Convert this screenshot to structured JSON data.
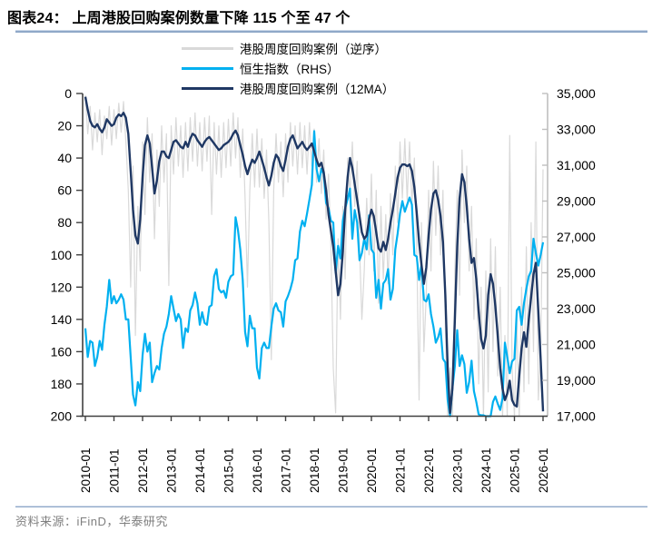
{
  "header": {
    "title": "图表24：  上周港股回购案例数量下降 115 个至 47 个"
  },
  "legend": [
    {
      "label": "港股周度回购案例（逆序）",
      "color": "#d9d9d9"
    },
    {
      "label": "恒生指数（RHS）",
      "color": "#00b0f0"
    },
    {
      "label": "港股周度回购案例（12MA）",
      "color": "#1f3864"
    }
  ],
  "footer": {
    "source": "资料来源：iFinD，华泰研究"
  },
  "colors": {
    "axis_dark": "#404040",
    "axis_light": "#bfbfbf",
    "divider_blue": "#8fa8c8",
    "gray_series": "#d9d9d9",
    "cyan_series": "#00b0f0",
    "navy_series": "#1f3864"
  },
  "chart_data": {
    "type": "line",
    "x_start": "2010-01",
    "x_freq": "monthly",
    "x_tick_labels": [
      "2010-01",
      "2011-01",
      "2012-01",
      "2013-01",
      "2014-01",
      "2015-01",
      "2016-01",
      "2017-01",
      "2018-01",
      "2019-01",
      "2020-01",
      "2021-01",
      "2022-01",
      "2023-01",
      "2024-01",
      "2025-01",
      "2026-01"
    ],
    "left_axis": {
      "range": [
        0,
        200
      ],
      "inverted": true,
      "ticks": [
        0,
        20,
        40,
        60,
        80,
        100,
        120,
        140,
        160,
        180,
        200
      ],
      "tick_labels": [
        "0",
        "20",
        "40",
        "60",
        "80",
        "100",
        "120",
        "140",
        "160",
        "180",
        "200"
      ]
    },
    "right_axis": {
      "range": [
        17000,
        35000
      ],
      "ticks": [
        35000,
        33000,
        31000,
        29000,
        27000,
        25000,
        23000,
        21000,
        19000,
        17000
      ],
      "tick_labels": [
        "35,000",
        "33,000",
        "31,000",
        "29,000",
        "27,000",
        "25,000",
        "23,000",
        "21,000",
        "19,000",
        "17,000"
      ]
    },
    "grid": false,
    "legend_position": "top-center",
    "series": [
      {
        "name": "港股周度回购案例（逆序）",
        "axis": "left",
        "color": "#d9d9d9",
        "width": 1.2,
        "values": [
          1,
          25,
          8,
          35,
          12,
          30,
          10,
          38,
          14,
          28,
          8,
          32,
          10,
          28,
          6,
          24,
          5,
          30,
          60,
          120,
          45,
          150,
          70,
          110,
          30,
          75,
          15,
          55,
          25,
          90,
          35,
          70,
          20,
          55,
          25,
          119,
          20,
          50,
          15,
          45,
          20,
          52,
          18,
          48,
          15,
          42,
          12,
          45,
          18,
          48,
          15,
          42,
          14,
          75,
          18,
          50,
          20,
          52,
          18,
          46,
          16,
          45,
          12,
          40,
          15,
          52,
          22,
          65,
          120,
          60,
          25,
          58,
          22,
          58,
          28,
          65,
          35,
          80,
          165,
          60,
          25,
          55,
          30,
          64,
          25,
          55,
          18,
          45,
          20,
          50,
          18,
          46,
          20,
          50,
          18,
          45,
          22,
          55,
          28,
          62,
          35,
          78,
          50,
          95,
          170,
          198,
          90,
          140,
          70,
          115,
          40,
          62,
          30,
          70,
          42,
          95,
          140,
          110,
          65,
          100,
          50,
          110,
          60,
          130,
          70,
          115,
          75,
          118,
          62,
          100,
          45,
          80,
          30,
          65,
          28,
          66,
          30,
          68,
          40,
          95,
          190,
          80,
          160,
          125,
          60,
          110,
          42,
          88,
          45,
          100,
          60,
          145,
          200,
          170,
          200,
          110,
          60,
          125,
          35,
          80,
          45,
          110,
          70,
          140,
          90,
          180,
          120,
          200,
          110,
          185,
          90,
          160,
          95,
          175,
          120,
          200,
          150,
          200,
          26,
          170,
          200,
          140,
          200,
          120,
          185,
          95,
          180,
          80,
          160,
          30,
          190,
          162,
          47
        ]
      },
      {
        "name": "恒生指数（RHS）",
        "axis": "right",
        "color": "#00b0f0",
        "width": 2.2,
        "values": [
          21900,
          20300,
          21200,
          21100,
          19800,
          20300,
          21200,
          20700,
          22100,
          23100,
          24600,
          23300,
          23700,
          23300,
          23500,
          23800,
          23500,
          22400,
          22400,
          20300,
          18200,
          17600,
          18900,
          18400,
          20400,
          21600,
          20600,
          21100,
          18900,
          19400,
          19800,
          19600,
          20800,
          21600,
          22000,
          22700,
          23700,
          23000,
          22300,
          22700,
          22400,
          20800,
          21900,
          21700,
          22900,
          23200,
          23900,
          23300,
          22100,
          22800,
          22200,
          22100,
          23100,
          23200,
          24800,
          25200,
          24100,
          23900,
          24000,
          23600,
          24500,
          24800,
          24900,
          28100,
          27400,
          26300,
          24600,
          21700,
          20900,
          22600,
          21900,
          21900,
          19700,
          19100,
          20800,
          21100,
          20800,
          20800,
          22000,
          23000,
          23300,
          22900,
          22800,
          22000,
          23400,
          23700,
          24100,
          24600,
          25700,
          25800,
          27300,
          27900,
          27600,
          28300,
          29100,
          29900,
          32900,
          30800,
          30100,
          30800,
          30500,
          28900,
          28600,
          27900,
          27800,
          25000,
          26500,
          25800,
          27900,
          28600,
          29100,
          29700,
          26900,
          28500,
          27800,
          25700,
          26100,
          26900,
          26300,
          28200,
          26300,
          26100,
          23600,
          24600,
          23000,
          24400,
          24600,
          25200,
          23500,
          24100,
          26300,
          27200,
          28300,
          29000,
          28400,
          28800,
          29200,
          28800,
          26000,
          25900,
          24600,
          25400,
          23500,
          23400,
          23800,
          22700,
          22000,
          21100,
          21400,
          21900,
          20200,
          20000,
          17900,
          17000,
          18600,
          19800,
          21800,
          19800,
          20400,
          19900,
          18300,
          18900,
          20100,
          18400,
          17800,
          17100,
          17050,
          17050,
          17000,
          17000,
          17000,
          17800,
          18100,
          17700,
          17350,
          18000,
          21100,
          20300,
          19400,
          20060,
          20200,
          22900,
          23100,
          22100,
          23300,
          24100,
          24800,
          25100,
          26900,
          26100,
          25400,
          26000,
          26700
        ]
      },
      {
        "name": "港股周度回购案例（12MA）",
        "axis": "left",
        "color": "#1f3864",
        "width": 2.4,
        "values": [
          2,
          10,
          17,
          20,
          21,
          19,
          22,
          24,
          21,
          16,
          18,
          20,
          19,
          15,
          13,
          14,
          12,
          15,
          25,
          48,
          72,
          88,
          93,
          78,
          52,
          32,
          26,
          31,
          46,
          62,
          54,
          42,
          36,
          36,
          39,
          40,
          35,
          30,
          29,
          31,
          33,
          34,
          30,
          33,
          28,
          25,
          26,
          29,
          31,
          33,
          30,
          28,
          27,
          29,
          31,
          33,
          35,
          34,
          32,
          31,
          30,
          28,
          25,
          23,
          26,
          32,
          38,
          45,
          50,
          45,
          41,
          43,
          40,
          36,
          41,
          46,
          52,
          57,
          51,
          43,
          38,
          40,
          45,
          48,
          41,
          33,
          28,
          26,
          30,
          34,
          32,
          30,
          33,
          35,
          33,
          31,
          36,
          41,
          45,
          43,
          49,
          60,
          75,
          85,
          95,
          110,
          125,
          118,
          98,
          72,
          52,
          40,
          46,
          56,
          66,
          76,
          86,
          90,
          88,
          78,
          72,
          76,
          86,
          96,
          98,
          92,
          97,
          90,
          80,
          72,
          62,
          52,
          46,
          44,
          44,
          45,
          44,
          48,
          58,
          74,
          92,
          106,
          118,
          108,
          88,
          72,
          62,
          60,
          66,
          76,
          92,
          125,
          170,
          198,
          182,
          140,
          95,
          65,
          50,
          55,
          70,
          90,
          105,
          102,
          115,
          135,
          152,
          158,
          150,
          125,
          112,
          118,
          132,
          150,
          170,
          183,
          190,
          186,
          178,
          190,
          193,
          194,
          175,
          158,
          148,
          157,
          140,
          126,
          112,
          105,
          135,
          165,
          197
        ]
      }
    ]
  }
}
